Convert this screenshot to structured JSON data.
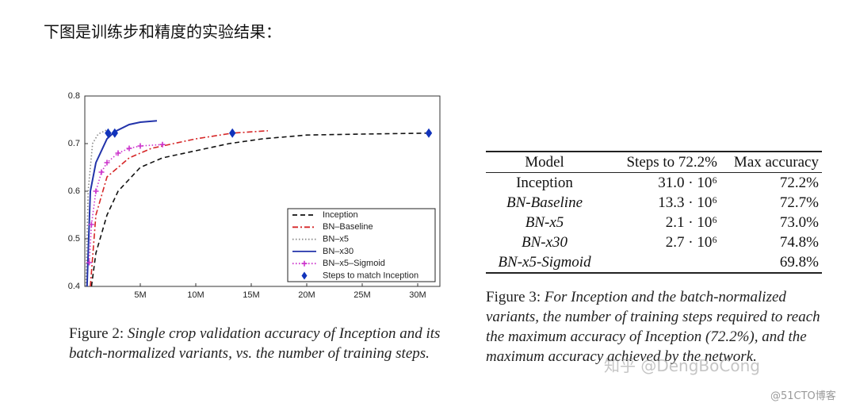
{
  "heading": "下图是训练步和精度的实验结果：",
  "chart_data": {
    "type": "line",
    "xlim": [
      0,
      32
    ],
    "ylim": [
      0.4,
      0.8
    ],
    "xticks": [
      {
        "value": 5,
        "label": "5M"
      },
      {
        "value": 10,
        "label": "10M"
      },
      {
        "value": 15,
        "label": "15M"
      },
      {
        "value": 20,
        "label": "20M"
      },
      {
        "value": 25,
        "label": "25M"
      },
      {
        "value": 30,
        "label": "30M"
      }
    ],
    "yticks": [
      0.4,
      0.5,
      0.6,
      0.7,
      0.8
    ],
    "legend": "lower right",
    "series": [
      {
        "name": "Inception",
        "color": "#111111",
        "dash": "dashed",
        "x": [
          0.6,
          1,
          2,
          3,
          5,
          7,
          10,
          13,
          16,
          20,
          25,
          31
        ],
        "values": [
          0.4,
          0.47,
          0.55,
          0.6,
          0.65,
          0.67,
          0.685,
          0.7,
          0.71,
          0.718,
          0.72,
          0.722
        ]
      },
      {
        "name": "BN–Baseline",
        "color": "#d62728",
        "dash": "dashdot",
        "x": [
          0.5,
          1,
          2,
          4,
          6,
          8,
          10,
          13.3,
          16.5
        ],
        "values": [
          0.4,
          0.55,
          0.63,
          0.67,
          0.69,
          0.7,
          0.71,
          0.722,
          0.727
        ]
      },
      {
        "name": "BN–x5",
        "color": "#888888",
        "dash": "dotted",
        "x": [
          0.1,
          0.3,
          0.7,
          1.2,
          2.1
        ],
        "values": [
          0.4,
          0.6,
          0.7,
          0.72,
          0.73
        ]
      },
      {
        "name": "BN–x30",
        "color": "#2233aa",
        "dash": "solid",
        "x": [
          0.2,
          0.5,
          1,
          2,
          2.7,
          4,
          5,
          6.5
        ],
        "values": [
          0.4,
          0.6,
          0.66,
          0.71,
          0.725,
          0.74,
          0.745,
          0.748
        ]
      },
      {
        "name": "BN–x5–Sigmoid",
        "color": "#cc33cc",
        "dash": "plus",
        "x": [
          0.4,
          0.6,
          1,
          1.5,
          2,
          3,
          4,
          5,
          7
        ],
        "values": [
          0.45,
          0.53,
          0.6,
          0.64,
          0.66,
          0.68,
          0.69,
          0.695,
          0.698
        ]
      },
      {
        "name": "Steps to match Inception",
        "color": "#1133bb",
        "dash": "diamond",
        "x": [
          2.1,
          2.7,
          13.3,
          31
        ],
        "values": [
          0.722,
          0.722,
          0.722,
          0.722
        ]
      }
    ]
  },
  "figure2_caption": {
    "label": "Figure 2:",
    "text": "Single crop validation accuracy of Inception and its batch-normalized variants, vs.  the number of training steps."
  },
  "table": {
    "header": [
      "Model",
      "Steps to 72.2%",
      "Max accuracy"
    ],
    "rows": [
      [
        "Inception",
        "31.0 · 10⁶",
        "72.2%"
      ],
      [
        "BN-Baseline",
        "13.3 · 10⁶",
        "72.7%"
      ],
      [
        "BN-x5",
        "2.1 · 10⁶",
        "73.0%"
      ],
      [
        "BN-x30",
        "2.7 · 10⁶",
        "74.8%"
      ],
      [
        "BN-x5-Sigmoid",
        null,
        "69.8%"
      ]
    ]
  },
  "figure3_caption": {
    "label": "Figure 3:",
    "text": "For Inception and the batch-normalized variants, the number of training steps required to reach the maximum accuracy of Inception (72.2%), and the maximum accuracy achieved by the network."
  },
  "watermarks": [
    "知乎 @DengBoCong",
    "@51CTO博客"
  ]
}
